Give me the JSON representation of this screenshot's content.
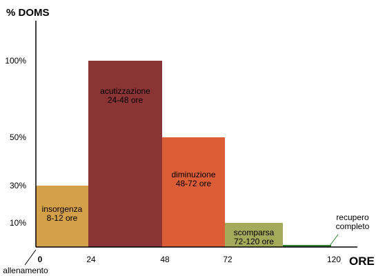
{
  "chart_data": {
    "type": "bar",
    "ylabel": "% DOMS",
    "xlabel": "ORE",
    "y_ticks": [
      {
        "value": 10,
        "label": "10%"
      },
      {
        "value": 30,
        "label": "30%"
      },
      {
        "value": 50,
        "label": "50%"
      },
      {
        "value": 100,
        "label": "100%"
      }
    ],
    "x_ticks": [
      {
        "value": 0,
        "label": "0"
      },
      {
        "value": 24,
        "label": "24"
      },
      {
        "value": 48,
        "label": "48"
      },
      {
        "value": 72,
        "label": "72"
      },
      {
        "value": 120,
        "label": "120"
      }
    ],
    "bars": [
      {
        "x_start": 0,
        "x_end": 24,
        "value": 30,
        "line1": "insorgenza",
        "line2": "8-12 ore",
        "color": "#d4a04a"
      },
      {
        "x_start": 24,
        "x_end": 48,
        "value": 100,
        "line1": "acutizzazione",
        "line2": "24-48 ore",
        "color": "#8b3436"
      },
      {
        "x_start": 48,
        "x_end": 72,
        "value": 50,
        "line1": "diminuzione",
        "line2": "48-72 ore",
        "color": "#dc5e36"
      },
      {
        "x_start": 72,
        "x_end": 96,
        "value": 10,
        "line1": "scomparsa",
        "line2": "72-120 ore",
        "color": "#a3aa5a"
      },
      {
        "x_start": 96,
        "x_end": 120,
        "value": 0,
        "line1": "",
        "line2": "",
        "color": "#2e7d32"
      }
    ],
    "annotations": [
      {
        "text": "allenamento",
        "at_x": 0
      },
      {
        "text_line1": "recupero",
        "text_line2": "completo",
        "at_x": 120
      }
    ],
    "ylim": [
      0,
      100
    ],
    "grid": false,
    "legend": "none"
  }
}
